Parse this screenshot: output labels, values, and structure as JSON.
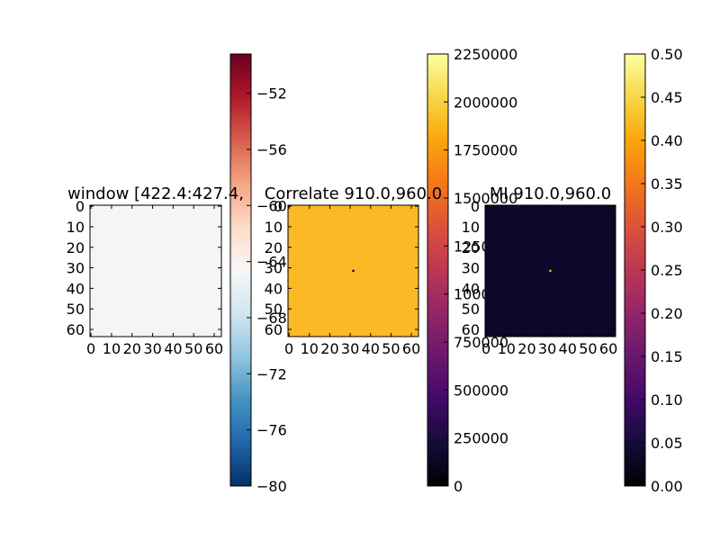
{
  "chart_data": [
    {
      "type": "heatmap",
      "title": "window [422.4:427.4,",
      "x_ticks": [
        "0",
        "10",
        "20",
        "30",
        "40",
        "50",
        "60"
      ],
      "y_ticks": [
        "0",
        "10",
        "20",
        "30",
        "40",
        "50",
        "60"
      ],
      "grid_size": 64,
      "fill_color": "#f5f5f5",
      "spots": [],
      "colorbar": {
        "colormap": "RdBu_r",
        "ticks": [
          "−52",
          "−56",
          "−60",
          "−64",
          "−68",
          "−72",
          "−76",
          "−80"
        ],
        "tick_values": [
          -52,
          -56,
          -60,
          -64,
          -68,
          -72,
          -76,
          -80
        ],
        "range": [
          -80,
          -49.2
        ]
      }
    },
    {
      "type": "heatmap",
      "title": "Correlate 910.0,960.0",
      "x_ticks": [
        "0",
        "10",
        "20",
        "30",
        "40",
        "50",
        "60"
      ],
      "y_ticks": [
        "0",
        "10",
        "20",
        "30",
        "40",
        "50",
        "60"
      ],
      "grid_size": 64,
      "fill_color": "#fbb925",
      "spots": [
        {
          "x": 32,
          "y": 32,
          "color": "#000004"
        }
      ],
      "colorbar": {
        "colormap": "inferno",
        "ticks": [
          "2250000",
          "2000000",
          "1750000",
          "1500000",
          "1250000",
          "1000000",
          "750000",
          "500000",
          "250000",
          "0"
        ],
        "tick_values": [
          2250000,
          2000000,
          1750000,
          1500000,
          1250000,
          1000000,
          750000,
          500000,
          250000,
          0
        ],
        "range": [
          0,
          2250000
        ]
      }
    },
    {
      "type": "heatmap",
      "title": "MI 910.0,960.0",
      "x_ticks": [
        "0",
        "10",
        "20",
        "30",
        "40",
        "50",
        "60"
      ],
      "y_ticks": [
        "0",
        "10",
        "20",
        "30",
        "40",
        "50",
        "60"
      ],
      "grid_size": 64,
      "fill_color": "#0d0829",
      "spots": [
        {
          "x": 32,
          "y": 32,
          "color": "#fbb925"
        }
      ],
      "colorbar": {
        "colormap": "inferno",
        "ticks": [
          "0.50",
          "0.45",
          "0.40",
          "0.35",
          "0.30",
          "0.25",
          "0.20",
          "0.15",
          "0.10",
          "0.05",
          "0.00"
        ],
        "tick_values": [
          0.5,
          0.45,
          0.4,
          0.35,
          0.3,
          0.25,
          0.2,
          0.15,
          0.1,
          0.05,
          0.0
        ],
        "range": [
          0,
          0.5
        ]
      }
    }
  ]
}
